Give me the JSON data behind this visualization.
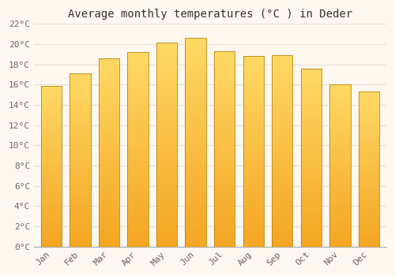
{
  "title": "Average monthly temperatures (°C ) in Deder",
  "months": [
    "Jan",
    "Feb",
    "Mar",
    "Apr",
    "May",
    "Jun",
    "Jul",
    "Aug",
    "Sep",
    "Oct",
    "Nov",
    "Dec"
  ],
  "values": [
    15.9,
    17.1,
    18.6,
    19.2,
    20.2,
    20.6,
    19.3,
    18.8,
    18.9,
    17.6,
    16.0,
    15.3
  ],
  "bar_color_bottom": "#F5A623",
  "bar_color_top": "#FFD966",
  "bar_edge_color": "#B8860B",
  "background_color": "#FFF8F0",
  "plot_bg_color": "#FFF8F0",
  "grid_color": "#E8E0D8",
  "text_color": "#666666",
  "title_color": "#333333",
  "ylim": [
    0,
    22
  ],
  "ytick_step": 2,
  "title_fontsize": 10,
  "tick_fontsize": 8,
  "font_family": "monospace"
}
